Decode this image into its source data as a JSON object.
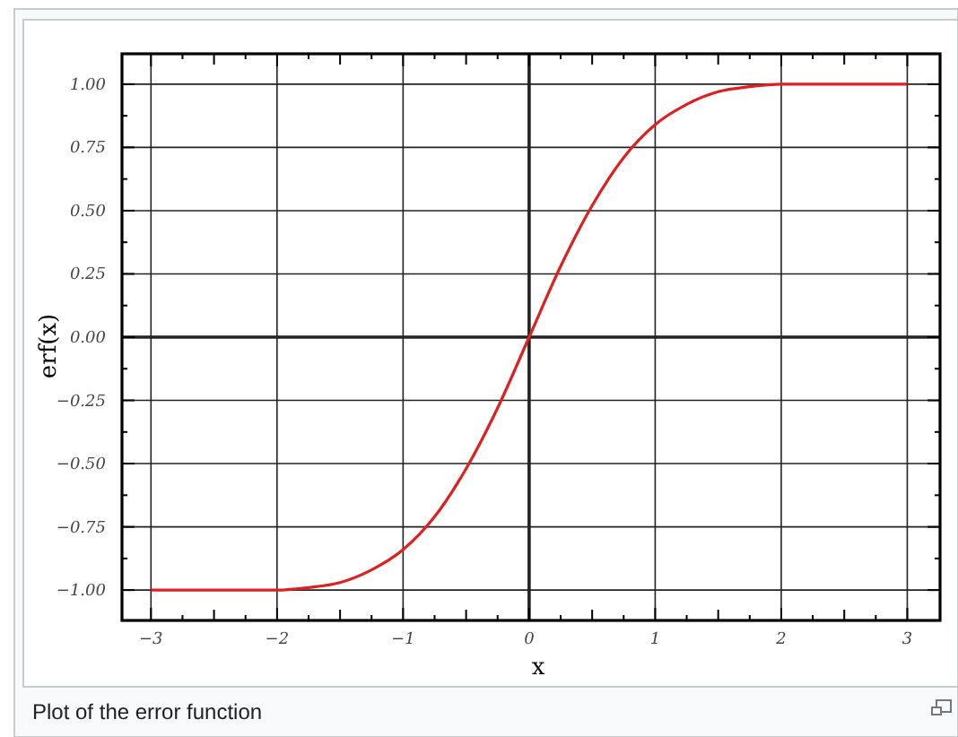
{
  "chart_data": {
    "type": "line",
    "xlabel": "x",
    "ylabel": "erf(x)",
    "annotations": [
      "Plot of the error function"
    ],
    "x": [
      -3,
      -2.75,
      -2.5,
      -2.25,
      -2,
      -1.75,
      -1.5,
      -1.25,
      -1,
      -0.75,
      -0.5,
      -0.25,
      0,
      0.25,
      0.5,
      0.75,
      1,
      1.25,
      1.5,
      1.75,
      2,
      2.25,
      2.5,
      2.75,
      3
    ],
    "series": [
      {
        "color": "#dd2020",
        "values": [
          -1.0,
          -1.0,
          -1.0,
          -1.0,
          -1.0,
          -0.99,
          -0.97,
          -0.92,
          -0.84,
          -0.71,
          -0.52,
          -0.28,
          0,
          0.28,
          0.52,
          0.71,
          0.84,
          0.92,
          0.97,
          0.99,
          1.0,
          1.0,
          1.0,
          1.0,
          1.0
        ]
      }
    ],
    "xlim": [
      -3.23,
      3.26
    ],
    "ylim": [
      -1.12,
      1.12
    ],
    "xticks": [
      {
        "value": -3,
        "label": "−3"
      },
      {
        "value": -2.75,
        "label": null
      },
      {
        "value": -2.5,
        "label": null
      },
      {
        "value": -2.25,
        "label": null
      },
      {
        "value": -2,
        "label": "−2"
      },
      {
        "value": -1.75,
        "label": null
      },
      {
        "value": -1.5,
        "label": null
      },
      {
        "value": -1.25,
        "label": null
      },
      {
        "value": -1,
        "label": "−1"
      },
      {
        "value": -0.75,
        "label": null
      },
      {
        "value": -0.5,
        "label": null
      },
      {
        "value": -0.25,
        "label": null
      },
      0,
      {
        "value": 0.25,
        "label": null
      },
      {
        "value": 0.5,
        "label": null
      },
      {
        "value": 0.75,
        "label": null
      },
      1,
      {
        "value": 1.25,
        "label": null
      },
      {
        "value": 1.5,
        "label": null
      },
      {
        "value": 1.75,
        "label": null
      },
      2,
      {
        "value": 2.25,
        "label": null
      },
      {
        "value": 2.5,
        "label": null
      },
      {
        "value": 2.75,
        "label": null
      },
      3
    ],
    "yticks": [
      {
        "value": -1,
        "label": "−1.00"
      },
      {
        "value": -0.875,
        "label": null
      },
      {
        "value": -0.75,
        "label": "−0.75"
      },
      {
        "value": -0.625,
        "label": null
      },
      {
        "value": -0.5,
        "label": "−0.50"
      },
      {
        "value": -0.375,
        "label": null
      },
      {
        "value": -0.25,
        "label": "−0.25"
      },
      {
        "value": -0.125,
        "label": null
      },
      {
        "value": 0,
        "label": "0.00"
      },
      {
        "value": 0.125,
        "label": null
      },
      {
        "value": 0.25,
        "label": "0.25"
      },
      {
        "value": 0.375,
        "label": null
      },
      {
        "value": 0.5,
        "label": "0.50"
      },
      {
        "value": 0.625,
        "label": null
      },
      {
        "value": 0.75,
        "label": "0.75"
      },
      {
        "value": 0.875,
        "label": null
      },
      {
        "value": 1,
        "label": "1.00"
      }
    ],
    "grid": true,
    "marker": "none",
    "line_style": "solid"
  }
}
